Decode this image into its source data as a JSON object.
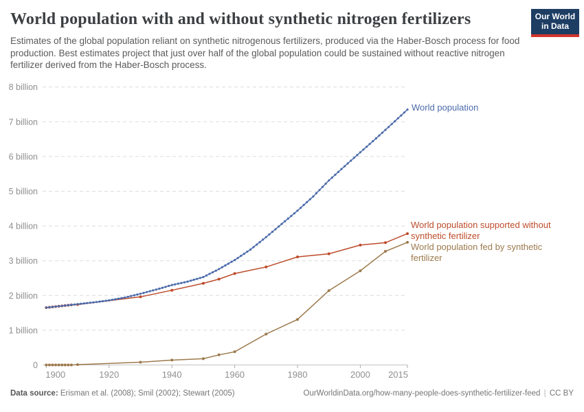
{
  "header": {
    "title": "World population with and without synthetic nitrogen fertilizers",
    "subtitle": "Estimates of the global population reliant on synthetic nitrogenous fertilizers, produced via the Haber-Bosch process for food production. Best estimates project that just over half of the global population could be sustained without reactive nitrogen fertilizer derived from the Haber-Bosch process."
  },
  "logo": {
    "line1": "Our World",
    "line2": "in Data",
    "background_color": "#1d3d63",
    "accent_color": "#d3342c"
  },
  "chart_data": {
    "type": "line",
    "title": "World population with and without synthetic nitrogen fertilizers",
    "xlabel": "",
    "ylabel": "",
    "unit": "billion people",
    "grid": "horizontal dashed",
    "legend_position": "right of line ends",
    "x_axis": {
      "range": [
        1900,
        2015
      ],
      "ticks": [
        {
          "year": 1900,
          "label": "1900"
        },
        {
          "year": 1920,
          "label": "1920"
        },
        {
          "year": 1940,
          "label": "1940"
        },
        {
          "year": 1960,
          "label": "1960"
        },
        {
          "year": 1980,
          "label": "1980"
        },
        {
          "year": 2000,
          "label": "2000"
        },
        {
          "year": 2015,
          "label": "2015"
        }
      ]
    },
    "y_axis": {
      "range": [
        0,
        8
      ],
      "ticks": [
        {
          "value": 0,
          "label": "0"
        },
        {
          "value": 1,
          "label": "1 billion"
        },
        {
          "value": 2,
          "label": "2 billion"
        },
        {
          "value": 3,
          "label": "3 billion"
        },
        {
          "value": 4,
          "label": "4 billion"
        },
        {
          "value": 5,
          "label": "5 billion"
        },
        {
          "value": 6,
          "label": "6 billion"
        },
        {
          "value": 7,
          "label": "7 billion"
        },
        {
          "value": 8,
          "label": "8 billion"
        }
      ]
    },
    "series": [
      {
        "id": "world-population",
        "name": "World population",
        "color": "#4c6bab",
        "annual_dots": true,
        "x": [
          1900,
          1905,
          1910,
          1915,
          1920,
          1925,
          1930,
          1935,
          1940,
          1945,
          1950,
          1955,
          1960,
          1965,
          1970,
          1975,
          1980,
          1985,
          1990,
          1995,
          2000,
          2005,
          2010,
          2015
        ],
        "y": [
          1.65,
          1.7,
          1.75,
          1.8,
          1.86,
          1.94,
          2.05,
          2.17,
          2.3,
          2.4,
          2.53,
          2.76,
          3.02,
          3.32,
          3.68,
          4.06,
          4.44,
          4.85,
          5.31,
          5.72,
          6.12,
          6.52,
          6.93,
          7.35
        ]
      },
      {
        "id": "without-fertilizer",
        "name": "World population supported without synthetic fertilizer",
        "color": "#bd4b2a",
        "annual_dots": false,
        "x": [
          1900,
          1901,
          1902,
          1903,
          1904,
          1905,
          1906,
          1907,
          1908,
          1910,
          1930,
          1940,
          1950,
          1955,
          1960,
          1970,
          1980,
          1990,
          2000,
          2008,
          2015
        ],
        "y": [
          1.65,
          1.66,
          1.67,
          1.68,
          1.69,
          1.7,
          1.71,
          1.72,
          1.73,
          1.74,
          1.96,
          2.15,
          2.35,
          2.47,
          2.63,
          2.82,
          3.11,
          3.2,
          3.45,
          3.52,
          3.78
        ]
      },
      {
        "id": "fed-by-fertilizer",
        "name": "World population fed by synthetic fertilizer",
        "color": "#9c7a4d",
        "annual_dots": false,
        "x": [
          1900,
          1901,
          1902,
          1903,
          1904,
          1905,
          1906,
          1907,
          1908,
          1910,
          1930,
          1940,
          1950,
          1955,
          1960,
          1970,
          1980,
          1990,
          2000,
          2008,
          2015
        ],
        "y": [
          0,
          0,
          0,
          0,
          0,
          0,
          0,
          0,
          0,
          0.01,
          0.08,
          0.14,
          0.18,
          0.29,
          0.38,
          0.89,
          1.31,
          2.14,
          2.71,
          3.27,
          3.53
        ]
      }
    ]
  },
  "footer": {
    "source_label": "Data source:",
    "source_value": "Erisman et al. (2008); Smil (2002); Stewart (2005)",
    "url": "OurWorldinData.org/how-many-people-does-synthetic-fertilizer-feed",
    "separator": "|",
    "license": "CC BY"
  }
}
